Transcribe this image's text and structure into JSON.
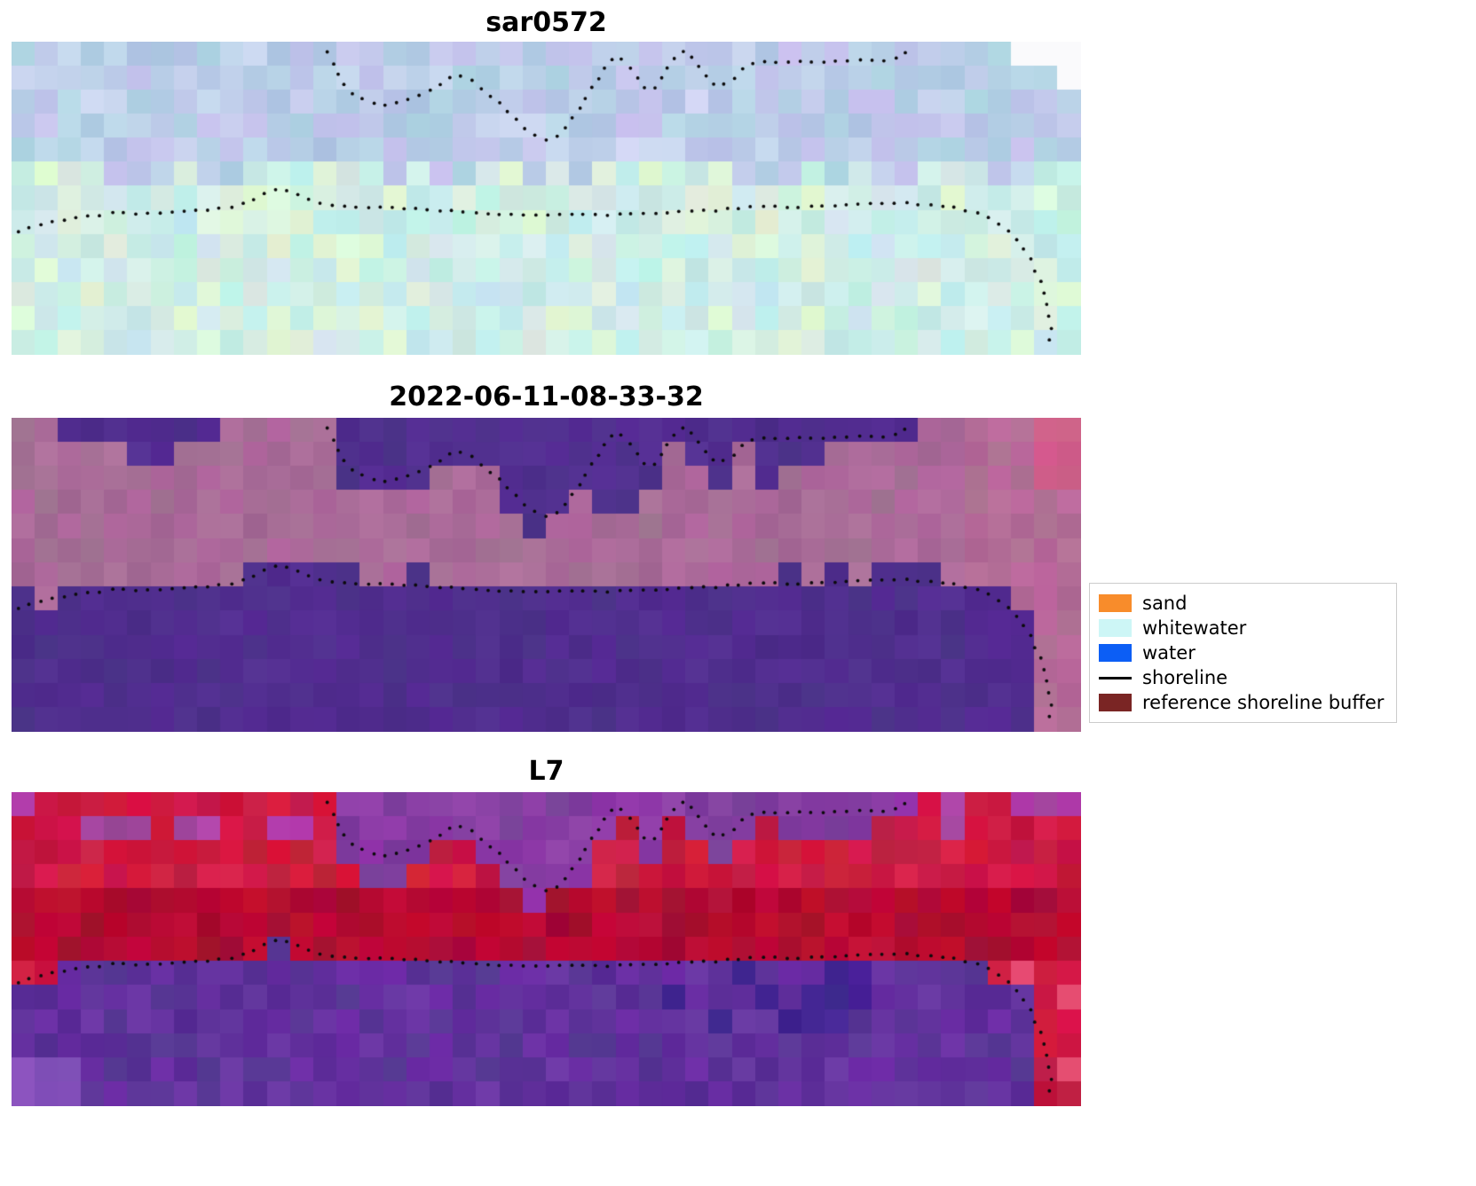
{
  "figure": {
    "panels": [
      {
        "title": "sar0572"
      },
      {
        "title": "2022-06-11-08-33-32"
      },
      {
        "title": "L7"
      }
    ],
    "legend": {
      "items": [
        {
          "label": "sand",
          "swatch": "patch",
          "color": "#f88c2b"
        },
        {
          "label": "whitewater",
          "swatch": "patch",
          "color": "#cdf6f6"
        },
        {
          "label": "water",
          "swatch": "patch",
          "color": "#0c5ef5"
        },
        {
          "label": "shoreline",
          "swatch": "line",
          "color": "#000000"
        },
        {
          "label": "reference shoreline buffer",
          "swatch": "patch",
          "color": "#7a2524"
        }
      ]
    }
  },
  "chart_data": {
    "type": "heatmap",
    "panels": [
      "sar0572",
      "2022-06-11-08-33-32",
      "L7"
    ],
    "legend_entries": [
      "sand",
      "whitewater",
      "water",
      "shoreline",
      "reference shoreline buffer"
    ],
    "shorelines": {
      "upper": [
        [
          0.296,
          0.035
        ],
        [
          0.303,
          0.09
        ],
        [
          0.312,
          0.145
        ],
        [
          0.322,
          0.175
        ],
        [
          0.336,
          0.195
        ],
        [
          0.352,
          0.205
        ],
        [
          0.368,
          0.185
        ],
        [
          0.385,
          0.165
        ],
        [
          0.398,
          0.15
        ],
        [
          0.408,
          0.115
        ],
        [
          0.418,
          0.105
        ],
        [
          0.428,
          0.115
        ],
        [
          0.438,
          0.145
        ],
        [
          0.452,
          0.185
        ],
        [
          0.466,
          0.23
        ],
        [
          0.478,
          0.27
        ],
        [
          0.49,
          0.3
        ],
        [
          0.503,
          0.315
        ],
        [
          0.515,
          0.29
        ],
        [
          0.527,
          0.235
        ],
        [
          0.538,
          0.175
        ],
        [
          0.549,
          0.115
        ],
        [
          0.558,
          0.06
        ],
        [
          0.567,
          0.045
        ],
        [
          0.576,
          0.07
        ],
        [
          0.585,
          0.115
        ],
        [
          0.594,
          0.155
        ],
        [
          0.603,
          0.145
        ],
        [
          0.612,
          0.09
        ],
        [
          0.62,
          0.05
        ],
        [
          0.629,
          0.025
        ],
        [
          0.638,
          0.055
        ],
        [
          0.648,
          0.105
        ],
        [
          0.659,
          0.145
        ],
        [
          0.67,
          0.135
        ],
        [
          0.681,
          0.095
        ],
        [
          0.692,
          0.07
        ],
        [
          0.705,
          0.06
        ],
        [
          0.72,
          0.065
        ],
        [
          0.74,
          0.06
        ],
        [
          0.76,
          0.065
        ],
        [
          0.78,
          0.06
        ],
        [
          0.8,
          0.055
        ],
        [
          0.815,
          0.06
        ],
        [
          0.83,
          0.05
        ],
        [
          0.838,
          0.03
        ]
      ],
      "lower": [
        [
          0.006,
          0.605
        ],
        [
          0.02,
          0.59
        ],
        [
          0.04,
          0.575
        ],
        [
          0.06,
          0.565
        ],
        [
          0.08,
          0.555
        ],
        [
          0.1,
          0.545
        ],
        [
          0.12,
          0.55
        ],
        [
          0.145,
          0.545
        ],
        [
          0.17,
          0.54
        ],
        [
          0.19,
          0.535
        ],
        [
          0.21,
          0.525
        ],
        [
          0.228,
          0.5
        ],
        [
          0.243,
          0.475
        ],
        [
          0.252,
          0.465
        ],
        [
          0.262,
          0.48
        ],
        [
          0.275,
          0.5
        ],
        [
          0.29,
          0.515
        ],
        [
          0.31,
          0.525
        ],
        [
          0.335,
          0.53
        ],
        [
          0.36,
          0.53
        ],
        [
          0.385,
          0.535
        ],
        [
          0.41,
          0.54
        ],
        [
          0.435,
          0.545
        ],
        [
          0.46,
          0.55
        ],
        [
          0.485,
          0.553
        ],
        [
          0.51,
          0.553
        ],
        [
          0.535,
          0.55
        ],
        [
          0.56,
          0.553
        ],
        [
          0.585,
          0.55
        ],
        [
          0.61,
          0.545
        ],
        [
          0.635,
          0.54
        ],
        [
          0.66,
          0.538
        ],
        [
          0.685,
          0.53
        ],
        [
          0.71,
          0.526
        ],
        [
          0.735,
          0.53
        ],
        [
          0.76,
          0.525
        ],
        [
          0.785,
          0.52
        ],
        [
          0.81,
          0.515
        ],
        [
          0.83,
          0.515
        ],
        [
          0.85,
          0.52
        ],
        [
          0.87,
          0.525
        ],
        [
          0.89,
          0.535
        ],
        [
          0.905,
          0.55
        ],
        [
          0.92,
          0.575
        ],
        [
          0.933,
          0.61
        ],
        [
          0.945,
          0.655
        ],
        [
          0.955,
          0.71
        ],
        [
          0.963,
          0.775
        ],
        [
          0.969,
          0.845
        ],
        [
          0.972,
          0.91
        ],
        [
          0.971,
          0.955
        ],
        [
          0.967,
          0.985
        ]
      ]
    }
  },
  "render": {
    "dot_color": "#0b0b0b",
    "panel1": {
      "top_rgb": [
        180,
        200,
        230
      ],
      "bottom_rgb": [
        202,
        233,
        229
      ],
      "cut_rgb": [
        250,
        250,
        252
      ]
    },
    "panel2": {
      "buffer_rgb": [
        166,
        106,
        150
      ],
      "water_rgb": [
        78,
        44,
        140
      ]
    },
    "panel3": {
      "red_rgb": [
        198,
        22,
        62
      ],
      "deep_red_rgb": [
        172,
        8,
        48
      ],
      "purple_rgb": [
        130,
        57,
        160
      ],
      "water_rgb": [
        92,
        47,
        153
      ],
      "dark_water_rgb": [
        60,
        30,
        140
      ]
    }
  }
}
